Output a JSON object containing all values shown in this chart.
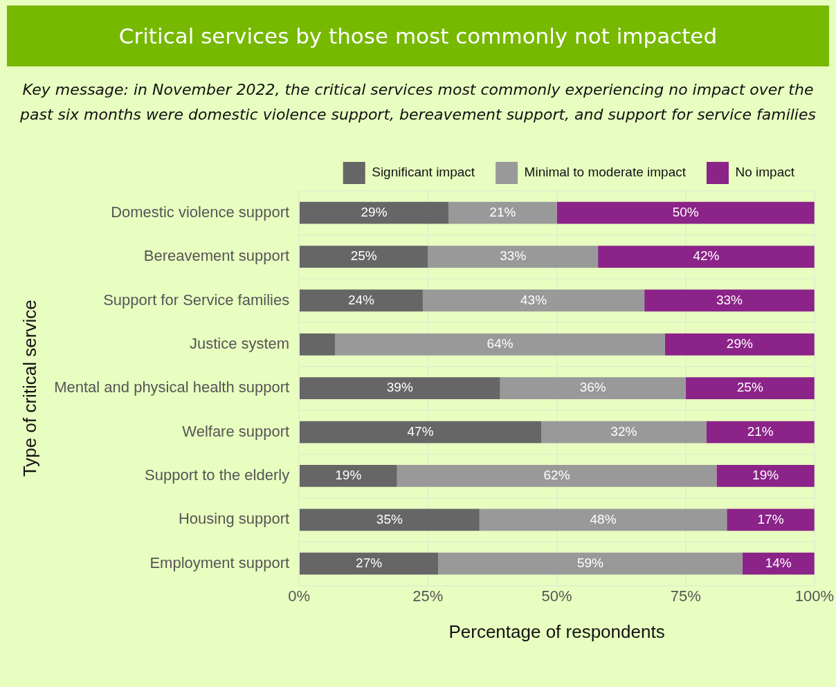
{
  "chart_data": {
    "type": "bar",
    "orientation": "horizontal",
    "stacked": true,
    "title": "Critical services by those most commonly not impacted",
    "subtitle": "Key message: in November 2022, the critical services most commonly experiencing no impact over the past six months were domestic violence support, bereavement support, and support for service families",
    "xlabel": "Percentage of respondents",
    "ylabel": "Type of critical service",
    "categories": [
      "Domestic violence support",
      "Bereavement support",
      "Support for Service families",
      "Justice system",
      "Mental and physical health support",
      "Welfare support",
      "Support to the elderly",
      "Housing support",
      "Employment support"
    ],
    "series": [
      {
        "name": "Significant impact",
        "color": "#666666",
        "values": [
          29,
          25,
          24,
          7,
          39,
          47,
          19,
          35,
          27
        ],
        "value_labels": [
          "29%",
          "25%",
          "24%",
          null,
          "39%",
          "47%",
          "19%",
          "35%",
          "27%"
        ]
      },
      {
        "name": "Minimal to moderate impact",
        "color": "#999999",
        "values": [
          21,
          33,
          43,
          64,
          36,
          32,
          62,
          48,
          59
        ],
        "value_labels": [
          "21%",
          "33%",
          "43%",
          "64%",
          "36%",
          "32%",
          "62%",
          "48%",
          "59%"
        ]
      },
      {
        "name": "No impact",
        "color": "#8b2389",
        "values": [
          50,
          42,
          33,
          29,
          25,
          21,
          19,
          17,
          14
        ],
        "value_labels": [
          "50%",
          "42%",
          "33%",
          "29%",
          "25%",
          "21%",
          "19%",
          "17%",
          "14%"
        ]
      }
    ],
    "xlim": [
      0,
      100
    ],
    "xticks": [
      {
        "value": 0,
        "label": "0%"
      },
      {
        "value": 25,
        "label": "25%"
      },
      {
        "value": 50,
        "label": "50%"
      },
      {
        "value": 75,
        "label": "75%"
      },
      {
        "value": 100,
        "label": "100%"
      }
    ],
    "grid": true,
    "legend": "top right"
  }
}
